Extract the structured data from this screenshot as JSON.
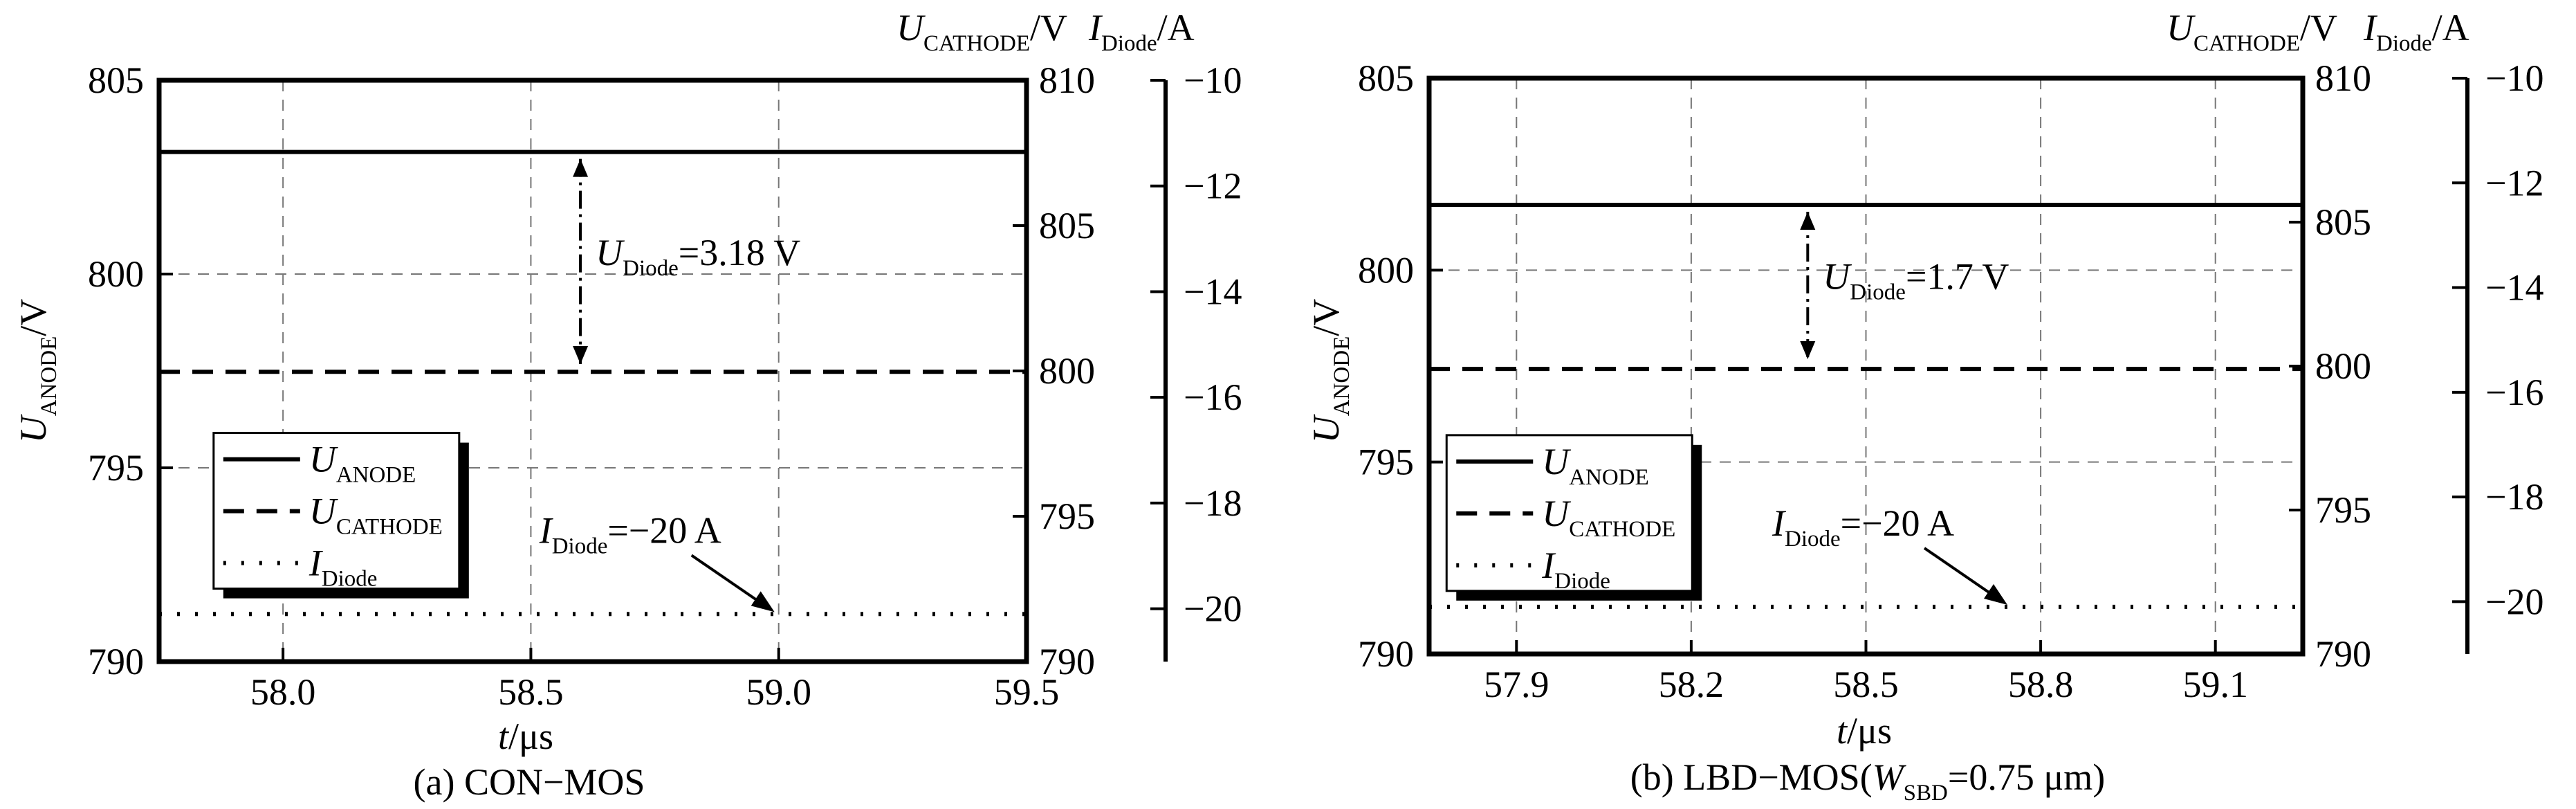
{
  "chart_data": [
    {
      "type": "line",
      "caption": "(a) CON−MOS",
      "x": {
        "label_var": "t",
        "label_unit": "/μs",
        "range": [
          57.75,
          59.5
        ],
        "ticks": [
          "58.0",
          "58.5",
          "59.0",
          "59.5"
        ],
        "tick_values": [
          58.0,
          58.5,
          59.0,
          59.5
        ]
      },
      "y_left": {
        "label_var": "U",
        "label_sub": "ANODE",
        "label_unit": "/V",
        "range": [
          790,
          805
        ],
        "ticks": [
          "790",
          "795",
          "800",
          "805"
        ],
        "tick_values": [
          790,
          795,
          800,
          805
        ]
      },
      "y_right1": {
        "label_var": "U",
        "label_sub": "CATHODE",
        "label_unit": "/V",
        "range": [
          790,
          810
        ],
        "ticks": [
          "790",
          "795",
          "800",
          "805",
          "810"
        ],
        "tick_values": [
          790,
          795,
          800,
          805,
          810
        ]
      },
      "y_right2": {
        "label_var": "I",
        "label_sub": "Diode",
        "label_unit": "/A",
        "range": [
          -21,
          -10
        ],
        "ticks": [
          "−20",
          "−18",
          "−16",
          "−14",
          "−12",
          "−10"
        ],
        "tick_values": [
          -20,
          -18,
          -16,
          -14,
          -12,
          -10
        ]
      },
      "grid": true,
      "series": [
        {
          "name_var": "U",
          "name_sub": "ANODE",
          "axis": "y_left",
          "style": "solid",
          "x": [
            57.75,
            59.5
          ],
          "y": [
            803.15,
            803.15
          ]
        },
        {
          "name_var": "U",
          "name_sub": "CATHODE",
          "axis": "y_right1",
          "style": "dashed",
          "x": [
            57.75,
            59.5
          ],
          "y": [
            799.97,
            799.97
          ]
        },
        {
          "name_var": "I",
          "name_sub": "Diode",
          "axis": "y_right2",
          "style": "dotted",
          "x": [
            57.75,
            59.5
          ],
          "y": [
            -20.1,
            -20.1
          ]
        }
      ],
      "annotations": [
        {
          "kind": "dimension",
          "var": "U",
          "sub": "Diode",
          "value": "=3.18 V",
          "x": 58.6,
          "y_from": 803.15,
          "y_to": 797.5
        },
        {
          "kind": "arrow",
          "var": "I",
          "sub": "Diode",
          "value": "=−20 A",
          "x": 59.0,
          "y": 791.1
        }
      ],
      "legend": {
        "placement": "lower-left",
        "box_left": 57.86,
        "box_top": 795.9
      }
    },
    {
      "type": "line",
      "caption_prefix": "(b) LBD−MOS(",
      "caption_var": "W",
      "caption_sub": "SBD",
      "caption_suffix": "=0.75 μm)",
      "x": {
        "label_var": "t",
        "label_unit": "/μs",
        "range": [
          57.75,
          59.25
        ],
        "ticks": [
          "57.9",
          "58.2",
          "58.5",
          "58.8",
          "59.1"
        ],
        "tick_values": [
          57.9,
          58.2,
          58.5,
          58.8,
          59.1
        ]
      },
      "y_left": {
        "label_var": "U",
        "label_sub": "ANODE",
        "label_unit": "/V",
        "range": [
          790,
          805
        ],
        "ticks": [
          "790",
          "795",
          "800",
          "805"
        ],
        "tick_values": [
          790,
          795,
          800,
          805
        ]
      },
      "y_right1": {
        "label_var": "U",
        "label_sub": "CATHODE",
        "label_unit": "/V",
        "range": [
          790,
          810
        ],
        "ticks": [
          "790",
          "795",
          "800",
          "805",
          "810"
        ],
        "tick_values": [
          790,
          795,
          800,
          805,
          810
        ]
      },
      "y_right2": {
        "label_var": "I",
        "label_sub": "Diode",
        "label_unit": "/A",
        "range": [
          -21,
          -10
        ],
        "ticks": [
          "−20",
          "−18",
          "−16",
          "−14",
          "−12",
          "−10"
        ],
        "tick_values": [
          -20,
          -18,
          -16,
          -14,
          -12,
          -10
        ]
      },
      "grid": true,
      "series": [
        {
          "name_var": "U",
          "name_sub": "ANODE",
          "axis": "y_left",
          "style": "solid",
          "x": [
            57.75,
            59.25
          ],
          "y": [
            801.7,
            801.7
          ]
        },
        {
          "name_var": "U",
          "name_sub": "CATHODE",
          "axis": "y_right1",
          "style": "dashed",
          "x": [
            57.75,
            59.25
          ],
          "y": [
            799.9,
            799.9
          ]
        },
        {
          "name_var": "I",
          "name_sub": "Diode",
          "axis": "y_right2",
          "style": "dotted",
          "x": [
            57.75,
            59.25
          ],
          "y": [
            -20.1,
            -20.1
          ]
        }
      ],
      "annotations": [
        {
          "kind": "dimension",
          "var": "U",
          "sub": "Diode",
          "value": "=1.7 V",
          "x": 58.4,
          "y_from": 801.7,
          "y_to": 797.5
        },
        {
          "kind": "arrow",
          "var": "I",
          "sub": "Diode",
          "value": "=−20 A",
          "x": 58.75,
          "y": 791.1
        }
      ],
      "legend": {
        "placement": "lower-left",
        "box_left": 57.78,
        "box_top": 795.7
      }
    }
  ]
}
